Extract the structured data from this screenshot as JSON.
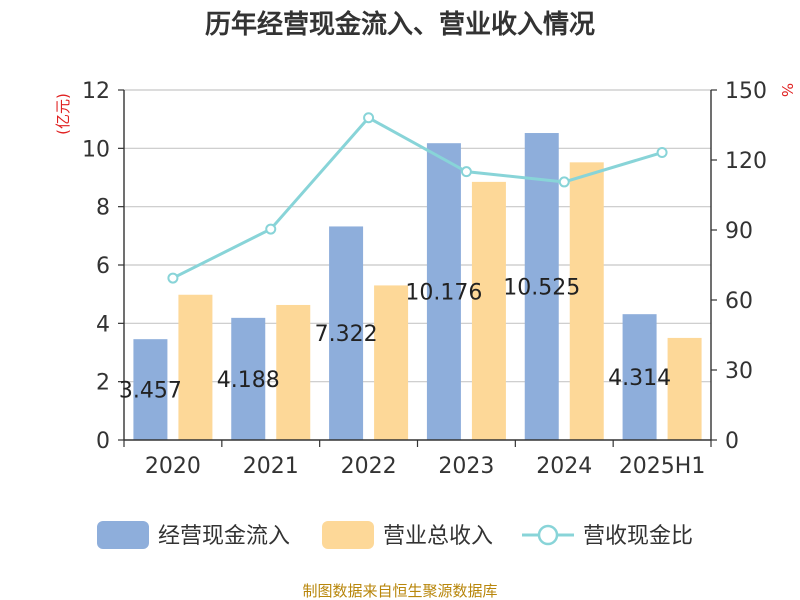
{
  "chart_data": {
    "type": "bar",
    "title": "历年经营现金流入、营业收入情况",
    "categories": [
      "2020",
      "2021",
      "2022",
      "2023",
      "2024",
      "2025H1"
    ],
    "series": [
      {
        "name": "经营现金流入",
        "type": "bar",
        "axis": "left",
        "color": "#8eaedb",
        "values": [
          3.457,
          4.188,
          7.322,
          10.176,
          10.525,
          4.314
        ],
        "labels": [
          "3.457",
          "4.188",
          "7.322",
          "10.176",
          "10.525",
          "4.314"
        ]
      },
      {
        "name": "营业总收入",
        "type": "bar",
        "axis": "left",
        "color": "#fdd898",
        "values": [
          4.98,
          4.63,
          5.3,
          8.85,
          9.52,
          3.5
        ]
      },
      {
        "name": "营收现金比",
        "type": "line",
        "axis": "right",
        "color": "#88d4d8",
        "values": [
          69.4,
          90.4,
          138.1,
          115.0,
          110.6,
          123.2
        ]
      }
    ],
    "left_axis": {
      "label": "(亿元)",
      "ylim": [
        0,
        12
      ],
      "ticks": [
        "0",
        "2",
        "4",
        "6",
        "8",
        "10",
        "12"
      ]
    },
    "right_axis": {
      "label": "%",
      "ylim": [
        0,
        150
      ],
      "ticks": [
        "0",
        "30",
        "60",
        "90",
        "120",
        "150"
      ]
    },
    "grid": true,
    "legend_position": "bottom"
  },
  "source_text": "制图数据来自恒生聚源数据库"
}
